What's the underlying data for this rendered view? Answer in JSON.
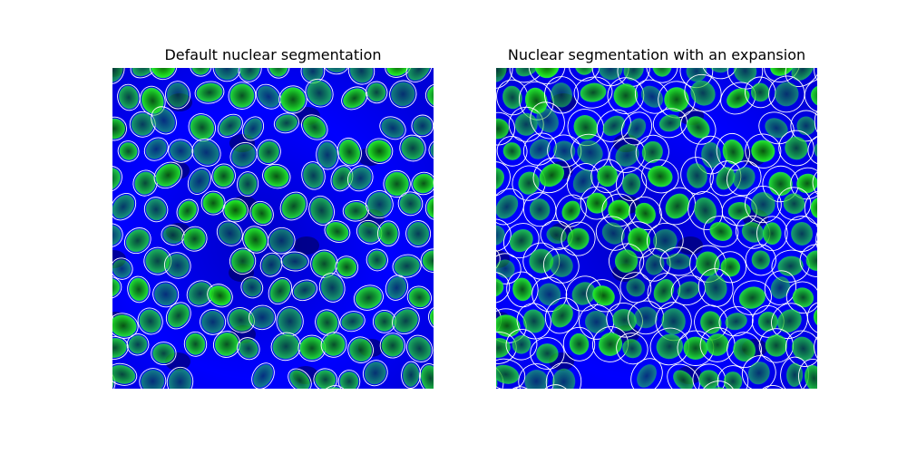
{
  "figure": {
    "panels": [
      {
        "id": "default",
        "title": "Default nuclear segmentation",
        "description": "Fluorescence image of cell nuclei (green) on blue background with thin white segmentation outlines tightly around each nucleus"
      },
      {
        "id": "expanded",
        "title": "Nuclear segmentation with an expansion",
        "description": "Same fluorescence image with white segmentation outlines expanded outward so neighbouring cells touch, forming a polygonal tessellation"
      }
    ]
  },
  "colors": {
    "background": "#0000ff",
    "nucleus": "#22e622",
    "nucleus_core": "#0a5a0a",
    "outline": "#ffffff"
  }
}
